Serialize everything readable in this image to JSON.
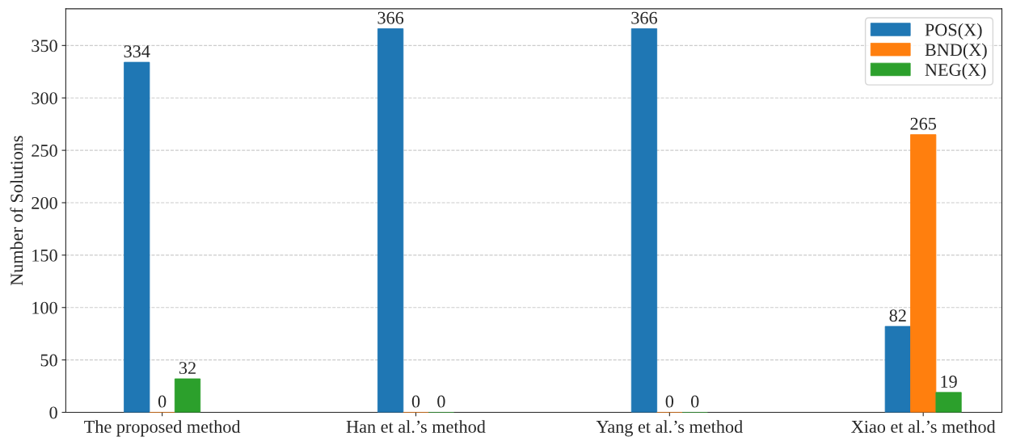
{
  "chart_data": {
    "type": "bar",
    "ylabel": "Number of Solutions",
    "categories": [
      "The proposed method",
      "Han et al.’s method",
      "Yang et al.’s method",
      "Xiao et al.’s method"
    ],
    "series": [
      {
        "name": "POS(X)",
        "color": "#1f77b4",
        "values": [
          334,
          366,
          366,
          82
        ]
      },
      {
        "name": "BND(X)",
        "color": "#ff7f0e",
        "values": [
          0,
          0,
          0,
          265
        ]
      },
      {
        "name": "NEG(X)",
        "color": "#2ca02c",
        "values": [
          32,
          0,
          0,
          19
        ]
      }
    ],
    "ylim": [
      0,
      385
    ],
    "yticks": [
      0,
      50,
      100,
      150,
      200,
      250,
      300,
      350
    ],
    "grid": "y",
    "legend": "top right",
    "data_labels": true
  }
}
